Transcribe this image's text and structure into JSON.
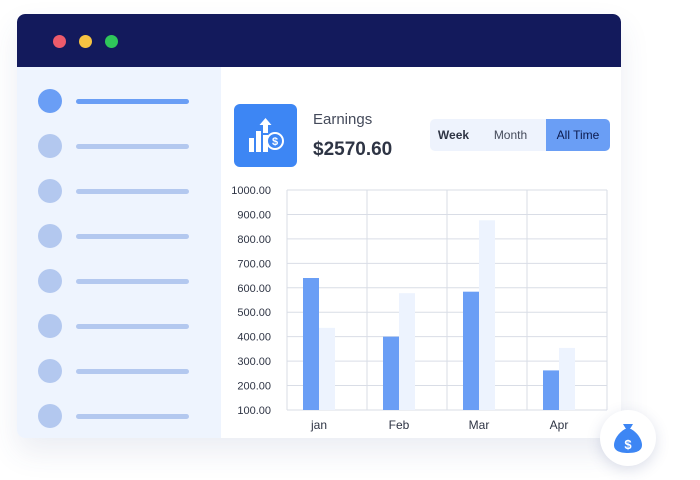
{
  "earnings": {
    "label": "Earnings",
    "value": "$2570.60"
  },
  "tabs": [
    {
      "label": "Week"
    },
    {
      "label": "Month"
    },
    {
      "label": "All Time",
      "selected": true
    }
  ],
  "icons": {
    "earnings": "earnings-growth-icon",
    "badge": "money-bag-icon"
  },
  "colors": {
    "titlebar": "#131a5c",
    "accent": "#3d86f4",
    "bar_primary": "#6a9ef5",
    "bar_secondary": "#edf3fe",
    "sidebar": "#eef4fe"
  },
  "chart_data": {
    "type": "bar",
    "categories": [
      "jan",
      "Feb",
      "Mar",
      "Apr"
    ],
    "series": [
      {
        "values": [
          436,
          578,
          876,
          354
        ]
      },
      {
        "values": [
          640,
          400,
          584,
          262
        ]
      }
    ],
    "y_ticks": [
      "100.00",
      "200.00",
      "300.00",
      "400.00",
      "500.00",
      "600.00",
      "700.00",
      "800.00",
      "900.00",
      "1000.00"
    ],
    "ylim": [
      100,
      1000
    ],
    "grid": true,
    "legend": "none"
  }
}
